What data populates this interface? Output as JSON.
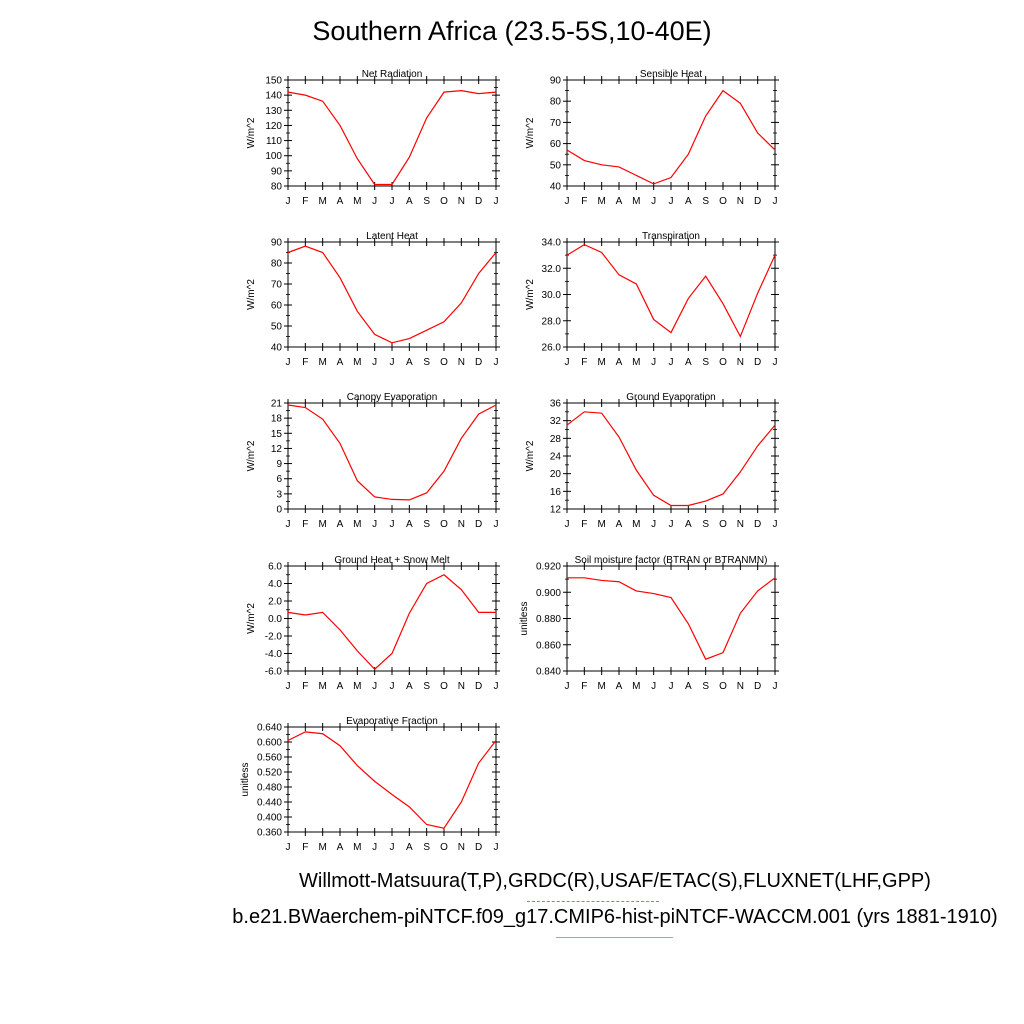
{
  "title": "Southern Africa (23.5-5S,10-40E)",
  "legend": {
    "observations": "Willmott-Matsuura(T,P),GRDC(R),USAF/ETAC(S),FLUXNET(LHF,GPP)",
    "model": "b.e21.BWaerchem-piNTCF.f09_g17.CMIP6-hist-piNTCF-WACCM.001 (yrs 1881-1910)",
    "observations_line_color": "#7b7bff",
    "model_line_color": "#ff8080"
  },
  "series_color": "#ff0000",
  "months": [
    "J",
    "F",
    "M",
    "A",
    "M",
    "J",
    "J",
    "A",
    "S",
    "O",
    "N",
    "D",
    "J"
  ],
  "chart_data": [
    {
      "type": "line",
      "title": "Net Radiation",
      "ylabel": "W/m^2",
      "ylim": [
        80,
        150
      ],
      "yticks": [
        "150",
        "140",
        "130",
        "120",
        "110",
        "100",
        "90",
        "80"
      ],
      "ytick_values": [
        150,
        140,
        130,
        120,
        110,
        100,
        90,
        80
      ],
      "values": [
        142,
        140,
        136,
        120,
        98,
        81,
        81,
        99,
        125,
        142,
        143,
        141,
        142
      ]
    },
    {
      "type": "line",
      "title": "Sensible Heat",
      "ylabel": "W/m^2",
      "ylim": [
        40,
        90
      ],
      "yticks": [
        "90",
        "80",
        "70",
        "60",
        "50",
        "40"
      ],
      "ytick_values": [
        90,
        80,
        70,
        60,
        50,
        40
      ],
      "values": [
        57,
        52,
        50,
        49,
        45,
        41,
        44,
        55,
        73,
        85,
        79,
        65,
        57
      ]
    },
    {
      "type": "line",
      "title": "Latent Heat",
      "ylabel": "W/m^2",
      "ylim": [
        40,
        90
      ],
      "yticks": [
        "90",
        "80",
        "70",
        "60",
        "50",
        "40"
      ],
      "ytick_values": [
        90,
        80,
        70,
        60,
        50,
        40
      ],
      "values": [
        85,
        88,
        85,
        73,
        57,
        46,
        42,
        44,
        48,
        52,
        61,
        75,
        85
      ]
    },
    {
      "type": "line",
      "title": "Transpiration",
      "ylabel": "W/m^2",
      "ylim": [
        26,
        34
      ],
      "yticks": [
        "34.0",
        "32.0",
        "30.0",
        "28.0",
        "26.0"
      ],
      "ytick_values": [
        34,
        32,
        30,
        28,
        26
      ],
      "values": [
        33,
        33.8,
        33.2,
        31.5,
        30.8,
        28.1,
        27.1,
        29.7,
        31.4,
        29.3,
        26.8,
        30.1,
        33
      ]
    },
    {
      "type": "line",
      "title": "Canopy Evaporation",
      "ylabel": "W/m^2",
      "ylim": [
        0,
        21
      ],
      "yticks": [
        "21",
        "18",
        "15",
        "12",
        "9",
        "6",
        "3",
        "0"
      ],
      "ytick_values": [
        21,
        18,
        15,
        12,
        9,
        6,
        3,
        0
      ],
      "values": [
        20.6,
        20.1,
        17.8,
        13,
        5.6,
        2.4,
        1.9,
        1.8,
        3.2,
        7.5,
        14,
        18.8,
        20.6
      ]
    },
    {
      "type": "line",
      "title": "Ground Evaporation",
      "ylabel": "W/m^2",
      "ylim": [
        12,
        36
      ],
      "yticks": [
        "36",
        "32",
        "28",
        "24",
        "20",
        "16",
        "12"
      ],
      "ytick_values": [
        36,
        32,
        28,
        24,
        20,
        16,
        12
      ],
      "values": [
        31,
        34,
        33.7,
        28.3,
        20.8,
        15.1,
        12.8,
        12.8,
        13.8,
        15.4,
        20.4,
        26.3,
        31
      ]
    },
    {
      "type": "line",
      "title": "Ground Heat + Snow Melt",
      "ylabel": "W/m^2",
      "ylim": [
        -6,
        6
      ],
      "yticks": [
        "6.0",
        "4.0",
        "2.0",
        "0.0",
        "-2.0",
        "-4.0",
        "-6.0"
      ],
      "ytick_values": [
        6,
        4,
        2,
        0,
        -2,
        -4,
        -6
      ],
      "values": [
        0.7,
        0.4,
        0.7,
        -1.3,
        -3.7,
        -5.8,
        -4,
        0.6,
        4,
        5,
        3.3,
        0.7,
        0.7
      ]
    },
    {
      "type": "line",
      "title": "Soil moisture factor (BTRAN or BTRANMN)",
      "ylabel": "unitless",
      "ylim": [
        0.84,
        0.92
      ],
      "yticks": [
        "0.920",
        "0.900",
        "0.880",
        "0.860",
        "0.840"
      ],
      "ytick_values": [
        0.92,
        0.9,
        0.88,
        0.86,
        0.84
      ],
      "values": [
        0.911,
        0.911,
        0.909,
        0.908,
        0.901,
        0.899,
        0.896,
        0.876,
        0.849,
        0.854,
        0.884,
        0.901,
        0.911
      ]
    },
    {
      "type": "line",
      "title": "Evaporative Fraction",
      "ylabel": "unitless",
      "ylim": [
        0.36,
        0.64
      ],
      "yticks": [
        "0.640",
        "0.600",
        "0.560",
        "0.520",
        "0.480",
        "0.440",
        "0.400",
        "0.360"
      ],
      "ytick_values": [
        0.64,
        0.6,
        0.56,
        0.52,
        0.48,
        0.44,
        0.4,
        0.36
      ],
      "values": [
        0.604,
        0.627,
        0.622,
        0.59,
        0.537,
        0.495,
        0.46,
        0.427,
        0.38,
        0.37,
        0.44,
        0.544,
        0.604
      ]
    }
  ]
}
